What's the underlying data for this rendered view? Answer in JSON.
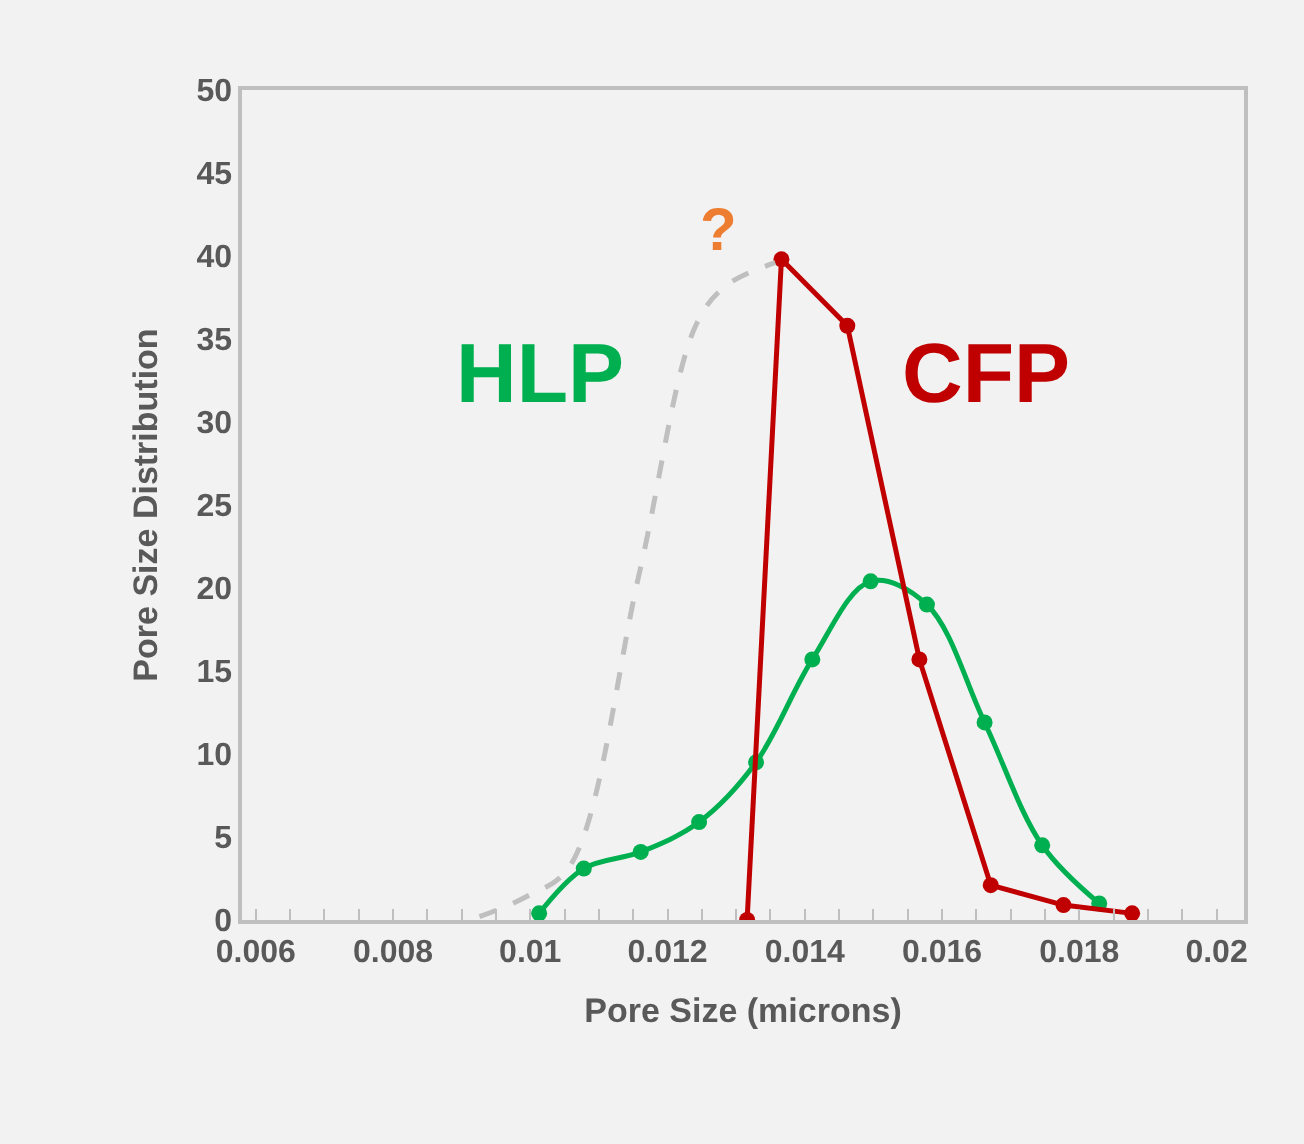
{
  "chart_data": {
    "type": "line",
    "xlabel": "Pore Size (microns)",
    "ylabel": "Pore Size Distribution",
    "xlim": [
      0.0058,
      0.0204
    ],
    "ylim": [
      0,
      50
    ],
    "xticks": [
      {
        "value": 0.006,
        "label": "0.006"
      },
      {
        "value": 0.008,
        "label": "0.008"
      },
      {
        "value": 0.01,
        "label": "0.01"
      },
      {
        "value": 0.012,
        "label": "0.012"
      },
      {
        "value": 0.014,
        "label": "0.014"
      },
      {
        "value": 0.016,
        "label": "0.016"
      },
      {
        "value": 0.018,
        "label": "0.018"
      },
      {
        "value": 0.02,
        "label": "0.02"
      }
    ],
    "yticks": [
      0,
      5,
      10,
      15,
      20,
      25,
      30,
      35,
      40,
      45,
      50
    ],
    "grid": false,
    "legend": false,
    "annotations": [
      "?"
    ],
    "series": [
      {
        "name": "HLP",
        "color": "#00b050",
        "marker": "circle",
        "line_style": "solid",
        "x": [
          0.01013,
          0.01078,
          0.01161,
          0.01246,
          0.01329,
          0.01411,
          0.01496,
          0.01578,
          0.01662,
          0.01746,
          0.01829
        ],
        "values": [
          0.4,
          3.1,
          4.1,
          5.9,
          9.5,
          15.7,
          20.4,
          19.0,
          11.9,
          4.5,
          1.0
        ]
      },
      {
        "name": "CFP",
        "color": "#c00000",
        "marker": "circle",
        "line_style": "solid",
        "x": [
          0.01316,
          0.01366,
          0.01462,
          0.01567,
          0.01671,
          0.01777,
          0.01877
        ],
        "values": [
          0,
          39.8,
          35.8,
          15.7,
          2.1,
          0.9,
          0.4
        ]
      },
      {
        "color": "#bfbfbf",
        "marker": "none",
        "line_style": "dashed",
        "x": [
          0.00926,
          0.00994,
          0.01057,
          0.01159,
          0.01241,
          0.01285,
          0.01357
        ],
        "values": [
          0.2,
          1.4,
          3.2,
          20.9,
          35.8,
          38.2,
          39.6
        ]
      }
    ]
  }
}
